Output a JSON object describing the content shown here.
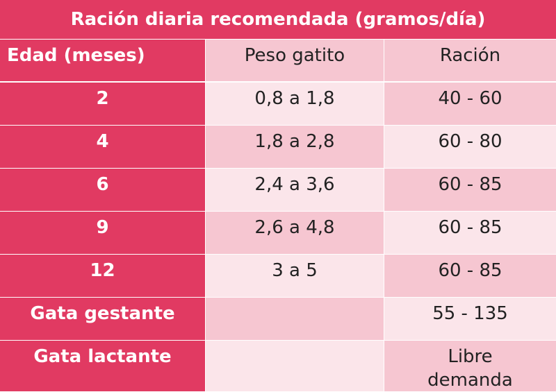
{
  "table": {
    "title": "Ración diaria recomendada (gramos/día)",
    "header": [
      "Edad (meses)",
      "Peso gatito",
      "Ración"
    ],
    "rows": [
      {
        "edad": "2",
        "peso": "0,8 a 1,8",
        "racion": "40 - 60"
      },
      {
        "edad": "4",
        "peso": "1,8 a 2,8",
        "racion": "60 - 80"
      },
      {
        "edad": "6",
        "peso": "2,4 a 3,6",
        "racion": "60 - 85"
      },
      {
        "edad": "9",
        "peso": "2,6 a 4,8",
        "racion": "60 - 85"
      },
      {
        "edad": "12",
        "peso": "3 a 5",
        "racion": "60 - 85"
      },
      {
        "edad": "Gata gestante",
        "racion": "55 - 135"
      },
      {
        "edad": "Gata lactante",
        "racion": "Libre demanda"
      }
    ]
  }
}
